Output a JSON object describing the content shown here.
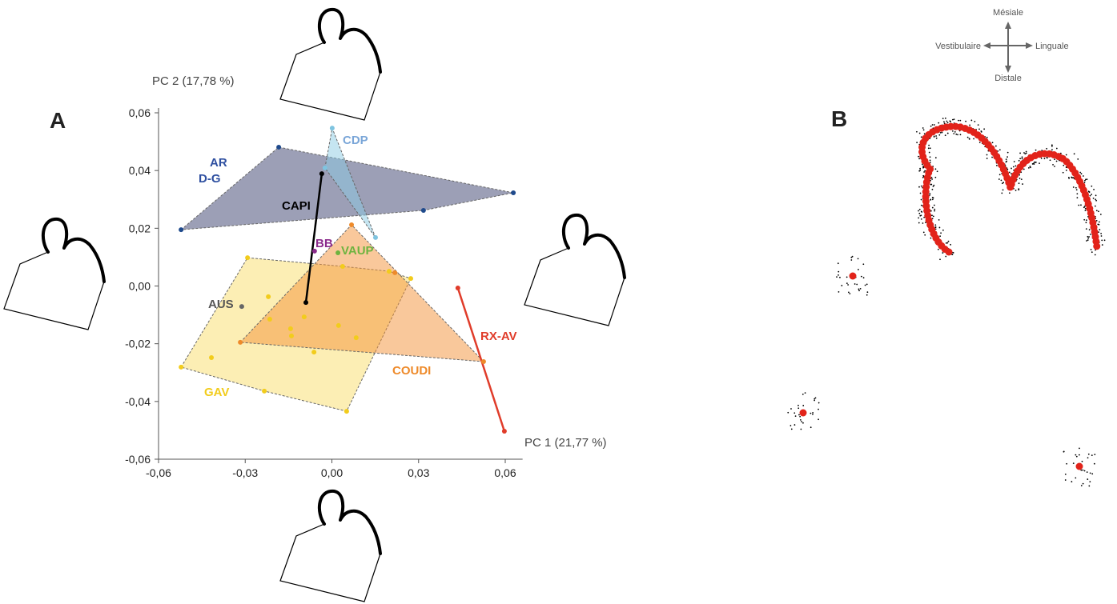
{
  "panel_labels": [
    "A",
    "B"
  ],
  "chart_data": {
    "type": "scatter",
    "xlabel": "PC 1 (21,77 %)",
    "ylabel": "PC 2 (17,78 %)",
    "xlim": [
      -0.06,
      0.066
    ],
    "ylim": [
      -0.06,
      0.06
    ],
    "xticks": [
      {
        "value": -0.06,
        "label": "-0,06"
      },
      {
        "value": -0.03,
        "label": "-0,03"
      },
      {
        "value": 0,
        "label": "0,00"
      },
      {
        "value": 0.03,
        "label": "0,03"
      },
      {
        "value": 0.06,
        "label": "0,06"
      }
    ],
    "yticks": [
      {
        "value": -0.06,
        "label": "-0,06"
      },
      {
        "value": -0.04,
        "label": "-0,04"
      },
      {
        "value": -0.02,
        "label": "-0,02"
      },
      {
        "value": 0,
        "label": "0,00"
      },
      {
        "value": 0.02,
        "label": "0,02"
      },
      {
        "value": 0.04,
        "label": "0,04"
      },
      {
        "value": 0.06,
        "label": "0,06"
      }
    ],
    "series": [
      {
        "name": "AR D-G",
        "color": "#1f4a8c",
        "label_color": "#2e4fa0",
        "hull_color": "#3a3f6e",
        "x": [
          -0.0184,
          0.0628,
          0.0317,
          -0.0522
        ],
        "y": [
          0.0481,
          0.0323,
          0.0262,
          0.0195
        ]
      },
      {
        "name": "CDP",
        "color": "#7fc4e0",
        "label_color": "#7aa6d8",
        "hull_color": "#8ccbe4",
        "x": [
          0.0001,
          -0.0024,
          0.0151
        ],
        "y": [
          0.0547,
          0.0409,
          0.0168
        ]
      },
      {
        "name": "GAV",
        "color": "#f2cc1c",
        "label_color": "#f2cc1c",
        "hull_color": "#f9dd6a",
        "x": [
          -0.0292,
          0.0273,
          0.0051,
          -0.0522,
          -0.0417,
          -0.0234,
          -0.022,
          -0.0215,
          -0.0096,
          -0.0143,
          -0.014,
          -0.0062,
          0.0023,
          0.0084,
          0.0037,
          0.0198
        ],
        "y": [
          0.0098,
          0.0026,
          -0.0434,
          -0.0281,
          -0.0248,
          -0.0364,
          -0.0037,
          -0.0115,
          -0.0107,
          -0.0148,
          -0.0173,
          -0.0229,
          -0.0137,
          -0.0179,
          0.0068,
          0.0051
        ]
      },
      {
        "name": "COUDI",
        "color": "#ee8a2a",
        "label_color": "#ee8a2a",
        "hull_color": "#f39237",
        "x": [
          0.0068,
          0.0525,
          -0.0317,
          0.0218
        ],
        "y": [
          0.0212,
          -0.0262,
          -0.0195,
          0.0046
        ]
      },
      {
        "name": "CAPI",
        "color": "#000000",
        "label_color": "#000000",
        "line": true,
        "x": [
          -0.0035,
          -0.009
        ],
        "y": [
          0.0389,
          -0.0057
        ]
      },
      {
        "name": "RX-AV",
        "color": "#e03c2a",
        "label_color": "#e03c2a",
        "line": true,
        "x": [
          0.0436,
          0.0597
        ],
        "y": [
          -0.0007,
          -0.0503
        ]
      },
      {
        "name": "BB",
        "color": "#8b2c8c",
        "label_color": "#8b2c8c",
        "x": [
          -0.006
        ],
        "y": [
          0.0121
        ]
      },
      {
        "name": "VAUP",
        "color": "#6db33f",
        "label_color": "#6db33f",
        "x": [
          0.0021
        ],
        "y": [
          0.0115
        ]
      },
      {
        "name": "AUS",
        "color": "#666666",
        "label_color": "#555555",
        "x": [
          -0.0312
        ],
        "y": [
          -0.0071
        ]
      }
    ]
  },
  "compass": {
    "top": "Mésiale",
    "left": "Vestibulaire",
    "right": "Linguale",
    "bottom": "Distale"
  }
}
